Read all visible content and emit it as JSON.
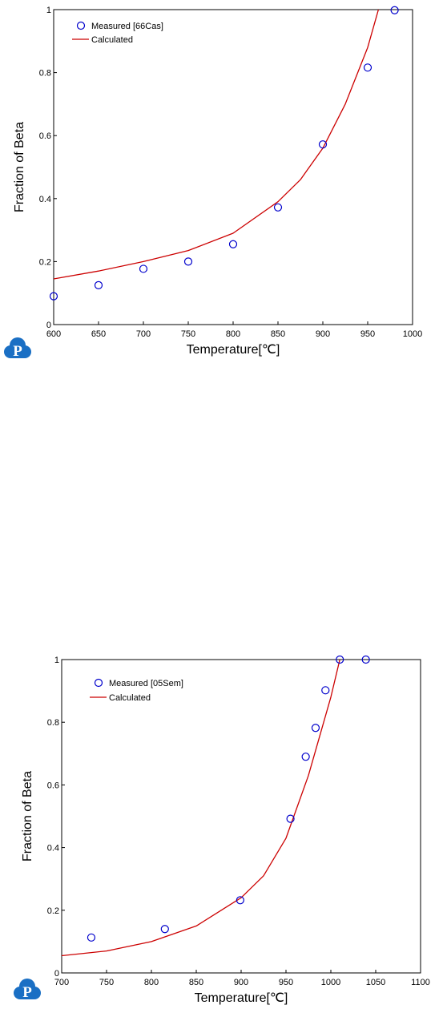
{
  "logo_letter": "P",
  "colors": {
    "measured": "#0000cc",
    "calculated": "#cc0000",
    "logo": "#1a6fc4"
  },
  "chart_data": [
    {
      "type": "scatter",
      "xlabel": "Temperature[℃]",
      "ylabel": "Fraction of Beta",
      "xlim": [
        600,
        1000
      ],
      "ylim": [
        0,
        1
      ],
      "xticks": [
        "600",
        "650",
        "700",
        "750",
        "800",
        "850",
        "900",
        "950",
        "1000"
      ],
      "yticks": [
        "0",
        "0.2",
        "0.4",
        "0.6",
        "0.8",
        "1"
      ],
      "grid": false,
      "legend_position": "top-left",
      "series": [
        {
          "name": "Measured [66Cas]",
          "kind": "markers",
          "x": [
            600,
            650,
            700,
            750,
            800,
            850,
            900,
            950,
            980
          ],
          "y": [
            0.09,
            0.125,
            0.177,
            0.2,
            0.255,
            0.372,
            0.572,
            0.816,
            0.998
          ]
        },
        {
          "name": "Calculated",
          "kind": "line",
          "x": [
            600,
            650,
            700,
            750,
            800,
            850,
            875,
            900,
            925,
            950,
            962
          ],
          "y": [
            0.145,
            0.17,
            0.2,
            0.235,
            0.29,
            0.39,
            0.46,
            0.56,
            0.7,
            0.88,
            1.0
          ]
        }
      ]
    },
    {
      "type": "scatter",
      "xlabel": "Temperature[℃]",
      "ylabel": "Fraction of Beta",
      "xlim": [
        700,
        1100
      ],
      "ylim": [
        0,
        1
      ],
      "xticks": [
        "700",
        "750",
        "800",
        "850",
        "900",
        "950",
        "1000",
        "1050",
        "1100"
      ],
      "yticks": [
        "0",
        "0.2",
        "0.4",
        "0.6",
        "0.8",
        "1"
      ],
      "grid": false,
      "legend_position": "top-left",
      "series": [
        {
          "name": "Measured [05Sem]",
          "kind": "markers",
          "x": [
            733,
            815,
            899,
            955,
            972,
            983,
            994,
            1010,
            1039
          ],
          "y": [
            0.113,
            0.14,
            0.232,
            0.492,
            0.69,
            0.782,
            0.902,
            1.0,
            1.0
          ]
        },
        {
          "name": "Calculated",
          "kind": "line",
          "x": [
            700,
            750,
            800,
            850,
            900,
            925,
            950,
            975,
            1000,
            1010
          ],
          "y": [
            0.055,
            0.07,
            0.1,
            0.15,
            0.24,
            0.31,
            0.43,
            0.63,
            0.88,
            1.0
          ]
        }
      ]
    }
  ]
}
